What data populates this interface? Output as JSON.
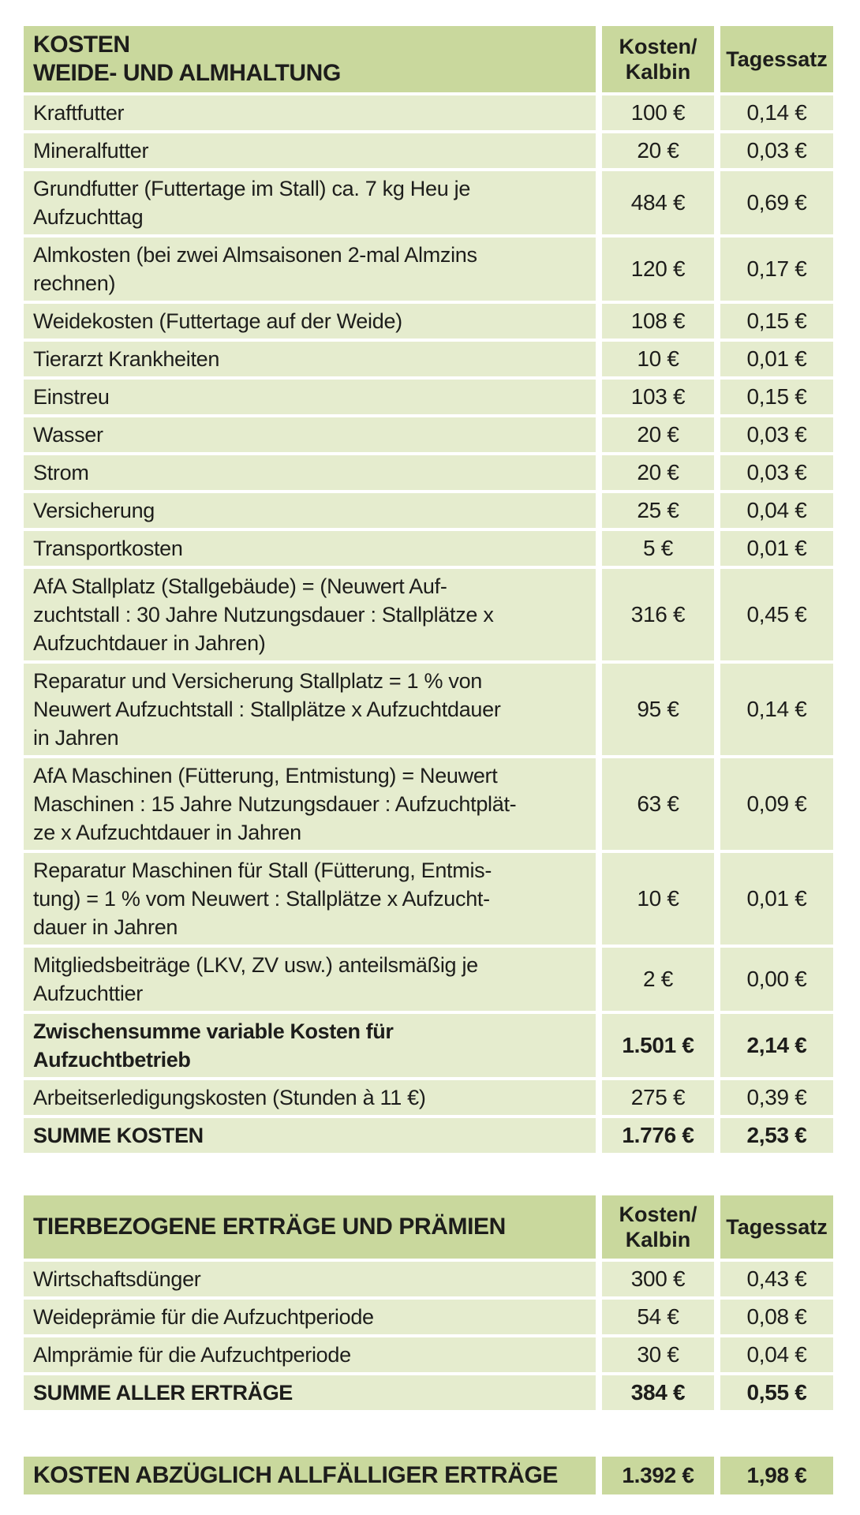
{
  "colors": {
    "page_bg": "#ffffff",
    "header_bg": "#c9d89d",
    "row_bg": "#e5ecce",
    "text": "#1d1d1b"
  },
  "table_kosten": {
    "title": "KOSTEN\nWEIDE- UND ALMHALTUNG",
    "col_kosten": "Kosten/\nKalbin",
    "col_tagessatz": "Tagessatz",
    "rows": [
      {
        "label": "Kraftfutter",
        "kosten": "100 €",
        "tagessatz": "0,14 €"
      },
      {
        "label": "Mineralfutter",
        "kosten": "20 €",
        "tagessatz": "0,03 €"
      },
      {
        "label": "Grundfutter (Futtertage im Stall) ca. 7 kg Heu je\nAufzuchttag",
        "kosten": "484 €",
        "tagessatz": "0,69 €"
      },
      {
        "label": "Almkosten (bei zwei Almsaisonen 2-mal Almzins\nrechnen)",
        "kosten": "120 €",
        "tagessatz": "0,17 €"
      },
      {
        "label": "Weidekosten (Futtertage auf der Weide)",
        "kosten": "108 €",
        "tagessatz": "0,15 €"
      },
      {
        "label": "Tierarzt Krankheiten",
        "kosten": "10 €",
        "tagessatz": "0,01 €"
      },
      {
        "label": "Einstreu",
        "kosten": "103 €",
        "tagessatz": "0,15 €"
      },
      {
        "label": "Wasser",
        "kosten": "20 €",
        "tagessatz": "0,03 €"
      },
      {
        "label": "Strom",
        "kosten": "20 €",
        "tagessatz": "0,03 €"
      },
      {
        "label": "Versicherung",
        "kosten": "25 €",
        "tagessatz": "0,04 €"
      },
      {
        "label": "Transportkosten",
        "kosten": "5 €",
        "tagessatz": "0,01 €"
      },
      {
        "label": "AfA Stallplatz (Stallgebäude) = (Neuwert Auf-\nzuchtstall : 30 Jahre Nutzungsdauer : Stallplätze x\nAufzuchtdauer in Jahren)",
        "kosten": "316 €",
        "tagessatz": "0,45 €"
      },
      {
        "label": "Reparatur und Versicherung Stallplatz = 1 % von\nNeuwert Aufzuchtstall : Stallplätze x Aufzuchtdauer\nin Jahren",
        "kosten": "95 €",
        "tagessatz": "0,14 €"
      },
      {
        "label": "AfA Maschinen (Fütterung, Entmistung) = Neuwert\nMaschinen : 15 Jahre Nutzungsdauer : Aufzuchtplät-\nze x Aufzuchtdauer in Jahren",
        "kosten": "63 €",
        "tagessatz": "0,09 €"
      },
      {
        "label": "Reparatur Maschinen für Stall (Fütterung, Entmis-\ntung) = 1 % vom Neuwert : Stallplätze x Aufzucht-\ndauer in Jahren",
        "kosten": "10 €",
        "tagessatz": "0,01 €"
      },
      {
        "label": "Mitgliedsbeiträge (LKV, ZV usw.) anteilsmäßig je\nAufzuchttier",
        "kosten": "2 €",
        "tagessatz": "0,00 €"
      },
      {
        "label": "Zwischensumme variable Kosten für\nAufzuchtbetrieb",
        "kosten": "1.501 €",
        "tagessatz": "2,14 €"
      },
      {
        "label": "Arbeitserledigungskosten (Stunden à 11 €)",
        "kosten": "275 €",
        "tagessatz": "0,39 €"
      },
      {
        "label": "SUMME KOSTEN",
        "kosten": "1.776 €",
        "tagessatz": "2,53 €"
      }
    ]
  },
  "table_ertraege": {
    "title": "TIERBEZOGENE ERTRÄGE UND PRÄMIEN",
    "col_kosten": "Kosten/\nKalbin",
    "col_tagessatz": "Tagessatz",
    "rows": [
      {
        "label": "Wirtschaftsdünger",
        "kosten": "300 €",
        "tagessatz": "0,43 €"
      },
      {
        "label": "Weideprämie für die Aufzuchtperiode",
        "kosten": "54 €",
        "tagessatz": "0,08 €"
      },
      {
        "label": "Almprämie für die Aufzuchtperiode",
        "kosten": "30 €",
        "tagessatz": "0,04 €"
      },
      {
        "label": "SUMME ALLER ERTRÄGE",
        "kosten": "384 €",
        "tagessatz": "0,55 €"
      }
    ]
  },
  "summary": {
    "label": "KOSTEN ABZÜGLICH ALLFÄLLIGER ERTRÄGE",
    "kosten": "1.392 €",
    "tagessatz": "1,98 €"
  }
}
